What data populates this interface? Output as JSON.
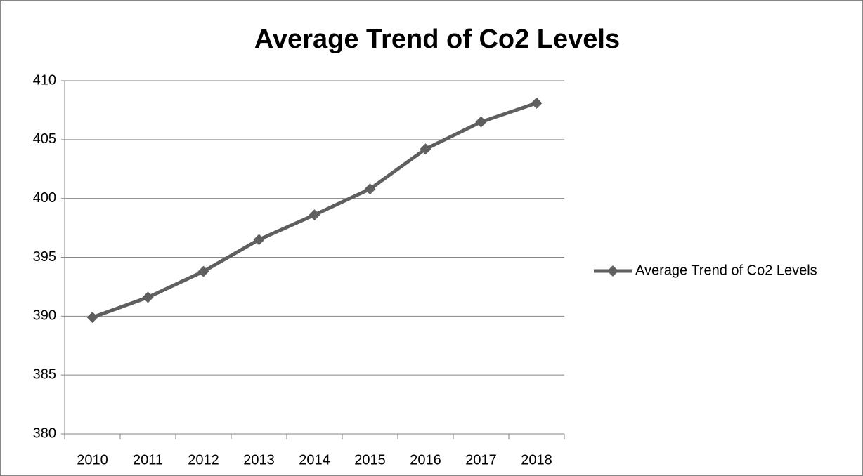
{
  "chart_data": {
    "type": "line",
    "title": "Average Trend of Co2 Levels",
    "categories": [
      "2010",
      "2011",
      "2012",
      "2013",
      "2014",
      "2015",
      "2016",
      "2017",
      "2018"
    ],
    "series": [
      {
        "name": "Average Trend of Co2 Levels",
        "color": "#5f5f5f",
        "values": [
          389.9,
          391.6,
          393.8,
          396.5,
          398.6,
          400.8,
          404.2,
          406.5,
          408.1
        ]
      }
    ],
    "ylim": [
      380,
      410
    ],
    "yticks": [
      380,
      385,
      390,
      395,
      400,
      405,
      410
    ],
    "grid": true,
    "legend": "right"
  }
}
